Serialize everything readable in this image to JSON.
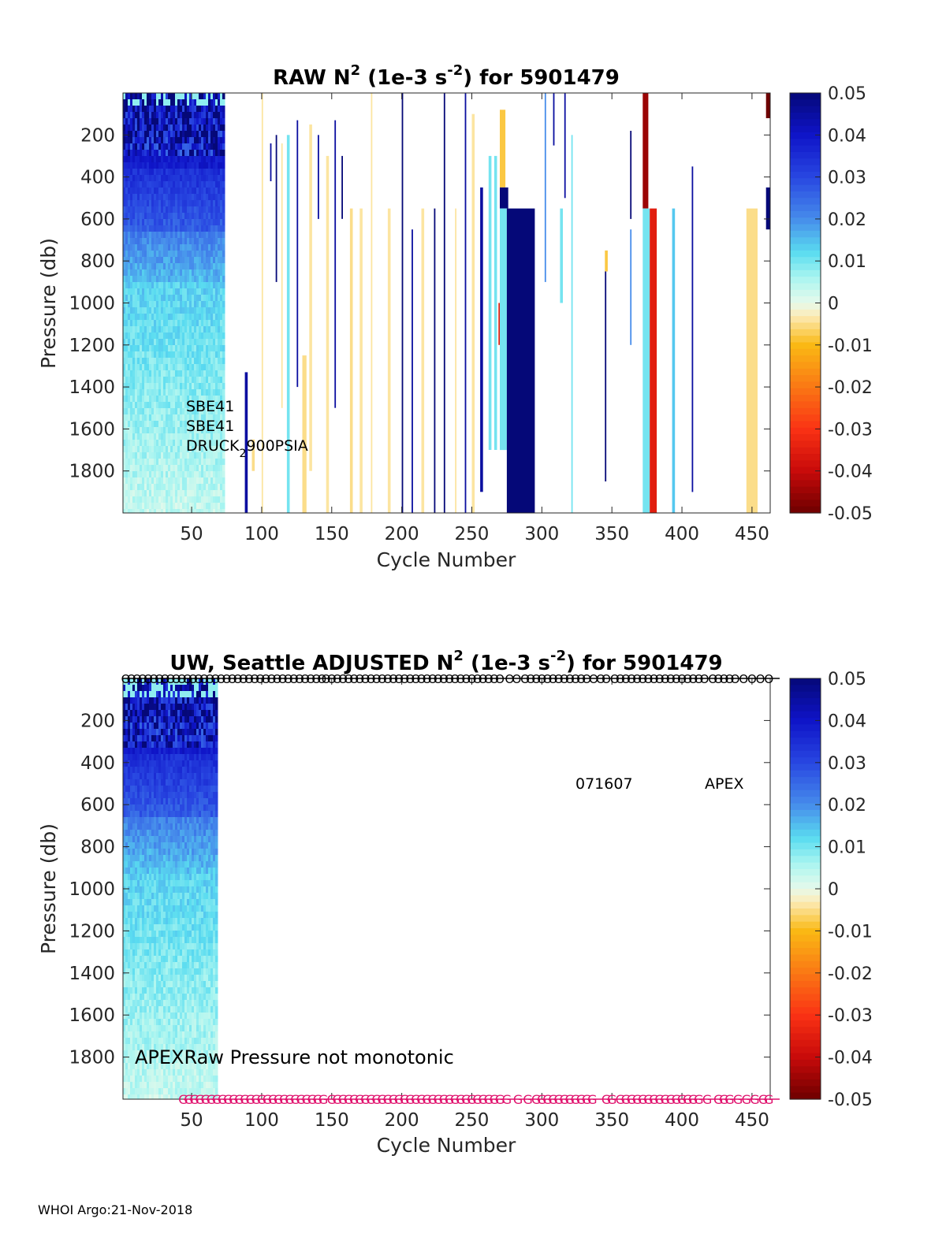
{
  "footer": "WHOI Argo:21-Nov-2018",
  "colorbar": {
    "ticks": [
      0.05,
      0.04,
      0.03,
      0.02,
      0.01,
      0,
      -0.01,
      -0.02,
      -0.03,
      -0.04,
      -0.05
    ],
    "tick_labels": [
      "0.05",
      "0.04",
      "0.03",
      "0.02",
      "0.01",
      "0",
      "-0.01",
      "-0.02",
      "-0.03",
      "-0.04",
      "-0.05"
    ],
    "range": [
      -0.05,
      0.05
    ]
  },
  "chart_data": [
    {
      "type": "heatmap",
      "id": "raw",
      "title_parts": [
        "RAW N",
        "2",
        " (1e-3 s",
        "-2",
        ") for 5901479"
      ],
      "xlabel": "Cycle Number",
      "ylabel": "Pressure (db)",
      "xlim": [
        1,
        463
      ],
      "ylim": [
        0,
        2000
      ],
      "y_reversed": true,
      "xticks": [
        50,
        100,
        150,
        200,
        250,
        300,
        350,
        400,
        450
      ],
      "yticks": [
        200,
        400,
        600,
        800,
        1000,
        1200,
        1400,
        1600,
        1800
      ],
      "background_block": {
        "x0": 1,
        "x1": 72
      },
      "annotations": {
        "sensor1": "SBE41",
        "sensor2": "SBE41",
        "pressure_sensor_a": "DRUCK",
        "pressure_sensor_sub": "2",
        "pressure_sensor_b": "900PSIA"
      },
      "columns": [
        {
          "x": 88,
          "w": 2,
          "p0": 1330,
          "p1": 2000,
          "v": 0.045
        },
        {
          "x": 93,
          "w": 2,
          "p0": 1650,
          "p1": 1800,
          "v": -0.005
        },
        {
          "x": 100,
          "w": 1,
          "p0": 0,
          "p1": 2000,
          "v": -0.004
        },
        {
          "x": 106,
          "w": 1,
          "p0": 240,
          "p1": 420,
          "v": 0.045
        },
        {
          "x": 110,
          "w": 1,
          "p0": 200,
          "p1": 900,
          "v": 0.05
        },
        {
          "x": 114,
          "w": 1,
          "p0": 240,
          "p1": 1500,
          "v": -0.004
        },
        {
          "x": 118,
          "w": 2,
          "p0": 200,
          "p1": 2000,
          "v": 0.01
        },
        {
          "x": 125,
          "w": 1,
          "p0": 130,
          "p1": 1400,
          "v": 0.045
        },
        {
          "x": 129,
          "w": 3,
          "p0": 1250,
          "p1": 2000,
          "v": -0.005
        },
        {
          "x": 134,
          "w": 2,
          "p0": 150,
          "p1": 1800,
          "v": -0.004
        },
        {
          "x": 140,
          "w": 1,
          "p0": 200,
          "p1": 600,
          "v": 0.045
        },
        {
          "x": 146,
          "w": 2,
          "p0": 300,
          "p1": 2000,
          "v": -0.004
        },
        {
          "x": 152,
          "w": 1,
          "p0": 130,
          "p1": 1500,
          "v": 0.045
        },
        {
          "x": 157,
          "w": 1,
          "p0": 300,
          "p1": 600,
          "v": 0.05
        },
        {
          "x": 163,
          "w": 2,
          "p0": 550,
          "p1": 2000,
          "v": -0.005
        },
        {
          "x": 170,
          "w": 2,
          "p0": 550,
          "p1": 2000,
          "v": -0.004
        },
        {
          "x": 178,
          "w": 1,
          "p0": 0,
          "p1": 2000,
          "v": -0.004
        },
        {
          "x": 190,
          "w": 2,
          "p0": 550,
          "p1": 2000,
          "v": -0.004
        },
        {
          "x": 200,
          "w": 1,
          "p0": 0,
          "p1": 2000,
          "v": 0.05
        },
        {
          "x": 207,
          "w": 1,
          "p0": 650,
          "p1": 2000,
          "v": 0.045
        },
        {
          "x": 214,
          "w": 2,
          "p0": 550,
          "p1": 2000,
          "v": -0.004
        },
        {
          "x": 223,
          "w": 1,
          "p0": 550,
          "p1": 2000,
          "v": 0.05
        },
        {
          "x": 230,
          "w": 1,
          "p0": 0,
          "p1": 2000,
          "v": 0.05
        },
        {
          "x": 238,
          "w": 1,
          "p0": 550,
          "p1": 2000,
          "v": -0.004
        },
        {
          "x": 245,
          "w": 1,
          "p0": 0,
          "p1": 2000,
          "v": 0.045
        },
        {
          "x": 250,
          "w": 2,
          "p0": 100,
          "p1": 2000,
          "v": -0.004
        },
        {
          "x": 256,
          "w": 2,
          "p0": 450,
          "p1": 1900,
          "v": 0.045
        },
        {
          "x": 262,
          "w": 2,
          "p0": 300,
          "p1": 1700,
          "v": 0.01
        },
        {
          "x": 266,
          "w": 2,
          "p0": 300,
          "p1": 1700,
          "v": 0.01
        },
        {
          "x": 269,
          "w": 3,
          "p0": 1000,
          "p1": 1200,
          "v": -0.035
        },
        {
          "x": 270,
          "w": 4,
          "p0": 80,
          "p1": 450,
          "v": -0.008
        },
        {
          "x": 270,
          "w": 6,
          "p0": 450,
          "p1": 550,
          "v": 0.05
        },
        {
          "x": 270,
          "w": 5,
          "p0": 550,
          "p1": 1700,
          "v": 0.01
        },
        {
          "x": 275,
          "w": 20,
          "p0": 550,
          "p1": 2000,
          "v": 0.05
        },
        {
          "x": 302,
          "w": 1,
          "p0": 0,
          "p1": 900,
          "v": 0.02
        },
        {
          "x": 308,
          "w": 1,
          "p0": 0,
          "p1": 250,
          "v": 0.045
        },
        {
          "x": 313,
          "w": 2,
          "p0": 550,
          "p1": 1000,
          "v": 0.01
        },
        {
          "x": 316,
          "w": 1,
          "p0": 0,
          "p1": 500,
          "v": 0.045
        },
        {
          "x": 321,
          "w": 1,
          "p0": 200,
          "p1": 2000,
          "v": 0.01
        },
        {
          "x": 345,
          "w": 2,
          "p0": 750,
          "p1": 850,
          "v": -0.008
        },
        {
          "x": 345,
          "w": 1,
          "p0": 850,
          "p1": 1850,
          "v": 0.05
        },
        {
          "x": 363,
          "w": 1,
          "p0": 180,
          "p1": 600,
          "v": 0.05
        },
        {
          "x": 363,
          "w": 1,
          "p0": 650,
          "p1": 1200,
          "v": 0.02
        },
        {
          "x": 372,
          "w": 4,
          "p0": 0,
          "p1": 550,
          "v": -0.045
        },
        {
          "x": 372,
          "w": 5,
          "p0": 550,
          "p1": 2000,
          "v": 0.01
        },
        {
          "x": 377,
          "w": 5,
          "p0": 550,
          "p1": 2000,
          "v": -0.035
        },
        {
          "x": 393,
          "w": 2,
          "p0": 550,
          "p1": 2000,
          "v": 0.014
        },
        {
          "x": 407,
          "w": 1,
          "p0": 350,
          "p1": 1900,
          "v": 0.045
        },
        {
          "x": 446,
          "w": 8,
          "p0": 550,
          "p1": 2000,
          "v": -0.005
        },
        {
          "x": 460,
          "w": 3,
          "p0": 0,
          "p1": 120,
          "v": -0.05
        },
        {
          "x": 460,
          "w": 3,
          "p0": 450,
          "p1": 650,
          "v": 0.05
        }
      ]
    },
    {
      "type": "heatmap",
      "id": "adjusted",
      "title_parts": [
        "UW, Seattle  ADJUSTED N",
        "2",
        " (1e-3 s",
        "-2",
        ") for 5901479"
      ],
      "xlabel": "Cycle Number",
      "ylabel": "Pressure (db)",
      "xlim": [
        1,
        463
      ],
      "ylim": [
        0,
        2000
      ],
      "y_reversed": true,
      "xticks": [
        50,
        100,
        150,
        200,
        250,
        300,
        350,
        400,
        450
      ],
      "yticks": [
        200,
        400,
        600,
        800,
        1000,
        1200,
        1400,
        1600,
        1800
      ],
      "background_block": {
        "x0": 1,
        "x1": 67
      },
      "annotations": {
        "serial": "071607",
        "float_type": "APEX",
        "qc_note": "APEXRaw Pressure not monotonic"
      },
      "top_markers": {
        "symbol": "O",
        "x": [
          3,
          7,
          11,
          15,
          19,
          23,
          27,
          31,
          35,
          39,
          43,
          47,
          51,
          55,
          59,
          63,
          67,
          71,
          75,
          79,
          83,
          87,
          91,
          95,
          99,
          103,
          107,
          111,
          115,
          119,
          123,
          127,
          131,
          135,
          139,
          143,
          146,
          150,
          154,
          158,
          162,
          166,
          170,
          174,
          178,
          182,
          186,
          190,
          194,
          198,
          202,
          206,
          210,
          214,
          218,
          222,
          226,
          230,
          234,
          238,
          242,
          246,
          250,
          254,
          258,
          262,
          266,
          270,
          277,
          282,
          288,
          292,
          296,
          300,
          304,
          308,
          312,
          316,
          320,
          324,
          328,
          332,
          337,
          342,
          346,
          352,
          356,
          360,
          364,
          368,
          372,
          376,
          380,
          384,
          388,
          392,
          396,
          400,
          404,
          408,
          412,
          416,
          422,
          426,
          430,
          434,
          438,
          444,
          450,
          456,
          462
        ]
      },
      "bottom_markers": {
        "symbol": "G",
        "x": [
          44,
          48,
          52,
          56,
          60,
          64,
          68,
          72,
          76,
          80,
          84,
          88,
          92,
          96,
          100,
          104,
          108,
          112,
          116,
          120,
          124,
          128,
          132,
          136,
          140,
          144,
          150,
          154,
          158,
          162,
          166,
          170,
          174,
          178,
          182,
          186,
          190,
          194,
          198,
          202,
          206,
          210,
          214,
          218,
          222,
          226,
          230,
          234,
          238,
          242,
          246,
          250,
          254,
          258,
          262,
          266,
          270,
          275,
          283,
          290,
          296,
          300,
          304,
          308,
          312,
          316,
          320,
          324,
          328,
          332,
          336,
          346,
          350,
          356,
          360,
          364,
          368,
          372,
          376,
          380,
          384,
          388,
          392,
          396,
          400,
          404,
          408,
          412,
          418,
          426,
          430,
          434,
          440,
          446,
          452,
          458,
          462
        ]
      }
    }
  ]
}
